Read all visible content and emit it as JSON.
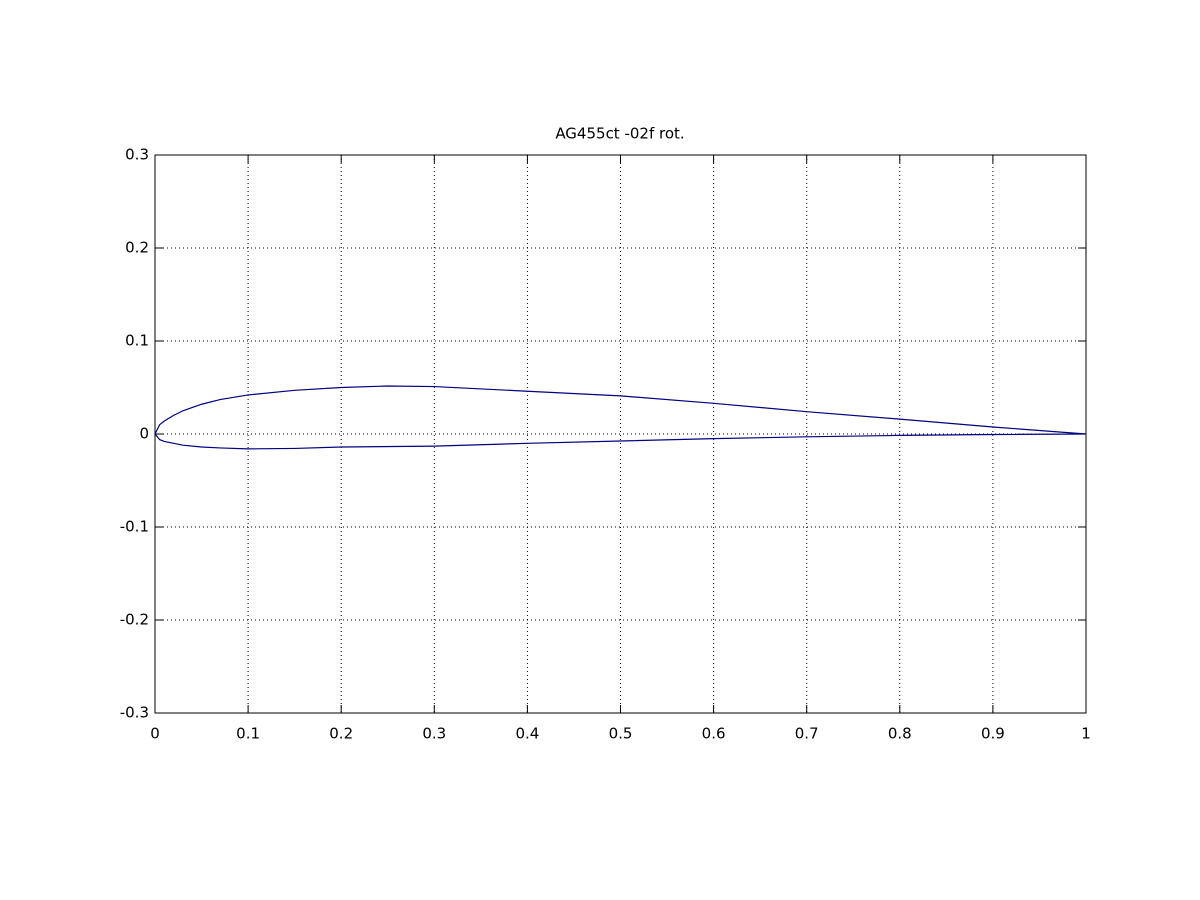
{
  "chart_data": {
    "type": "line",
    "title": "AG455ct -02f rot.",
    "x": [
      1,
      0.9,
      0.8,
      0.7,
      0.6,
      0.5,
      0.4,
      0.3,
      0.25,
      0.2,
      0.15,
      0.1,
      0.07,
      0.05,
      0.03,
      0.02,
      0.01,
      0.005,
      0,
      0.005,
      0.01,
      0.02,
      0.03,
      0.05,
      0.07,
      0.1,
      0.15,
      0.2,
      0.3,
      0.4,
      0.5,
      0.6,
      0.7,
      0.8,
      0.9,
      1
    ],
    "values": [
      0,
      0.0075,
      0.016,
      0.024,
      0.033,
      0.041,
      0.046,
      0.051,
      0.0516,
      0.05,
      0.047,
      0.042,
      0.037,
      0.032,
      0.025,
      0.02,
      0.014,
      0.01,
      0,
      -0.006,
      -0.008,
      -0.01,
      -0.012,
      -0.014,
      -0.015,
      -0.016,
      -0.0155,
      -0.014,
      -0.013,
      -0.01,
      -0.0075,
      -0.005,
      -0.003,
      -0.0015,
      -0.0005,
      0
    ],
    "color": "#000080",
    "xlim": [
      0,
      1
    ],
    "xticks": [
      0,
      0.1,
      0.2,
      0.3,
      0.4,
      0.5,
      0.6,
      0.7,
      0.8,
      0.9,
      1
    ],
    "ylim": [
      -0.3,
      0.3
    ],
    "yticks": [
      -0.3,
      -0.2,
      -0.1,
      0,
      0.1,
      0.2,
      0.3
    ],
    "grid": true
  }
}
